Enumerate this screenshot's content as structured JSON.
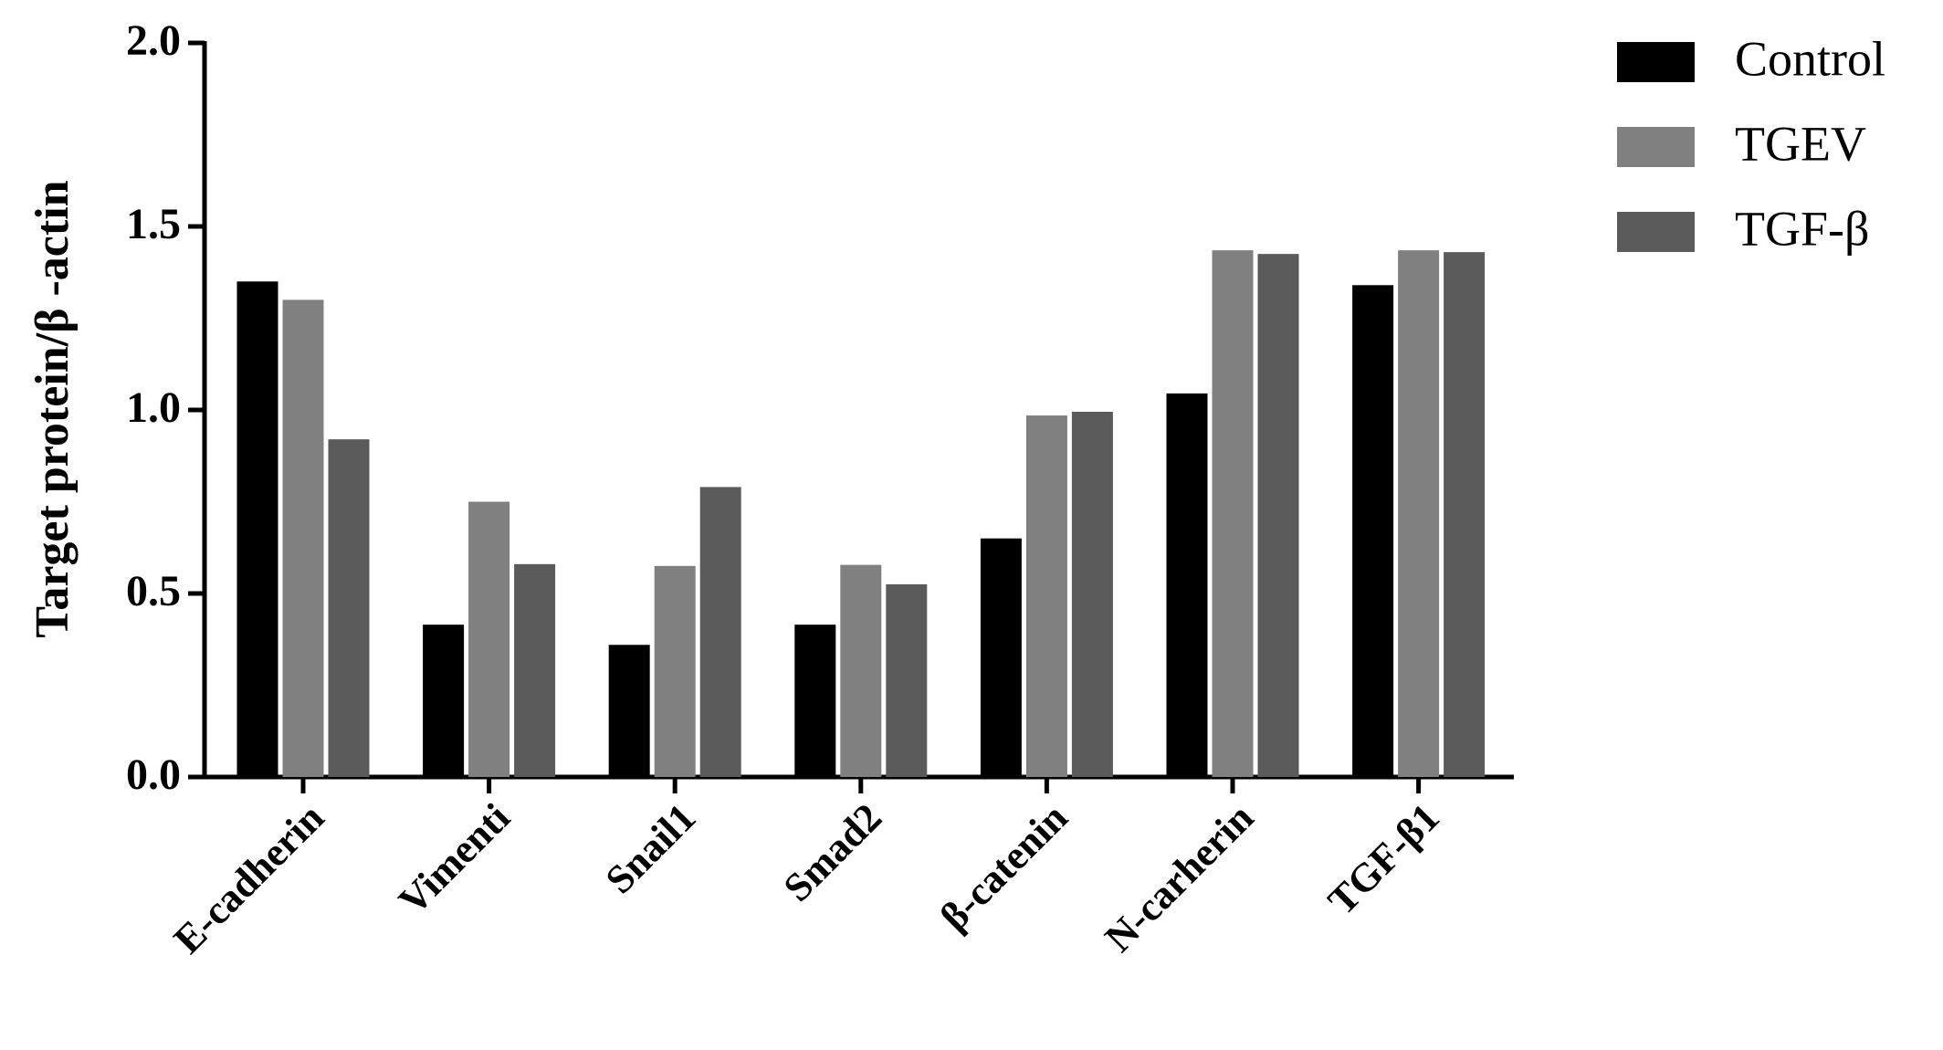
{
  "chart_data": {
    "type": "bar",
    "y_label": "Target protein/β -actin",
    "categories": [
      "E-cadherin",
      "Vimenti",
      "Snail1",
      "Smad2",
      "β-catenin",
      "N-carherin",
      "TGF-β1"
    ],
    "series": [
      {
        "name": "Control",
        "color": "#000000",
        "values": [
          1.35,
          0.415,
          0.36,
          0.415,
          0.65,
          1.045,
          1.34
        ]
      },
      {
        "name": "TGEV",
        "color": "#808080",
        "values": [
          1.3,
          0.75,
          0.575,
          0.578,
          0.985,
          1.435,
          1.435
        ]
      },
      {
        "name": "TGF-β",
        "color": "#5a5a5a",
        "values": [
          0.92,
          0.58,
          0.79,
          0.525,
          0.995,
          1.425,
          1.43
        ]
      }
    ],
    "ylim": [
      0,
      2
    ],
    "yticks": [
      {
        "value": 0,
        "label": "0.0"
      },
      0.5,
      {
        "value": 1,
        "label": "1.0"
      },
      1.5,
      {
        "value": 2,
        "label": "2.0"
      }
    ]
  }
}
